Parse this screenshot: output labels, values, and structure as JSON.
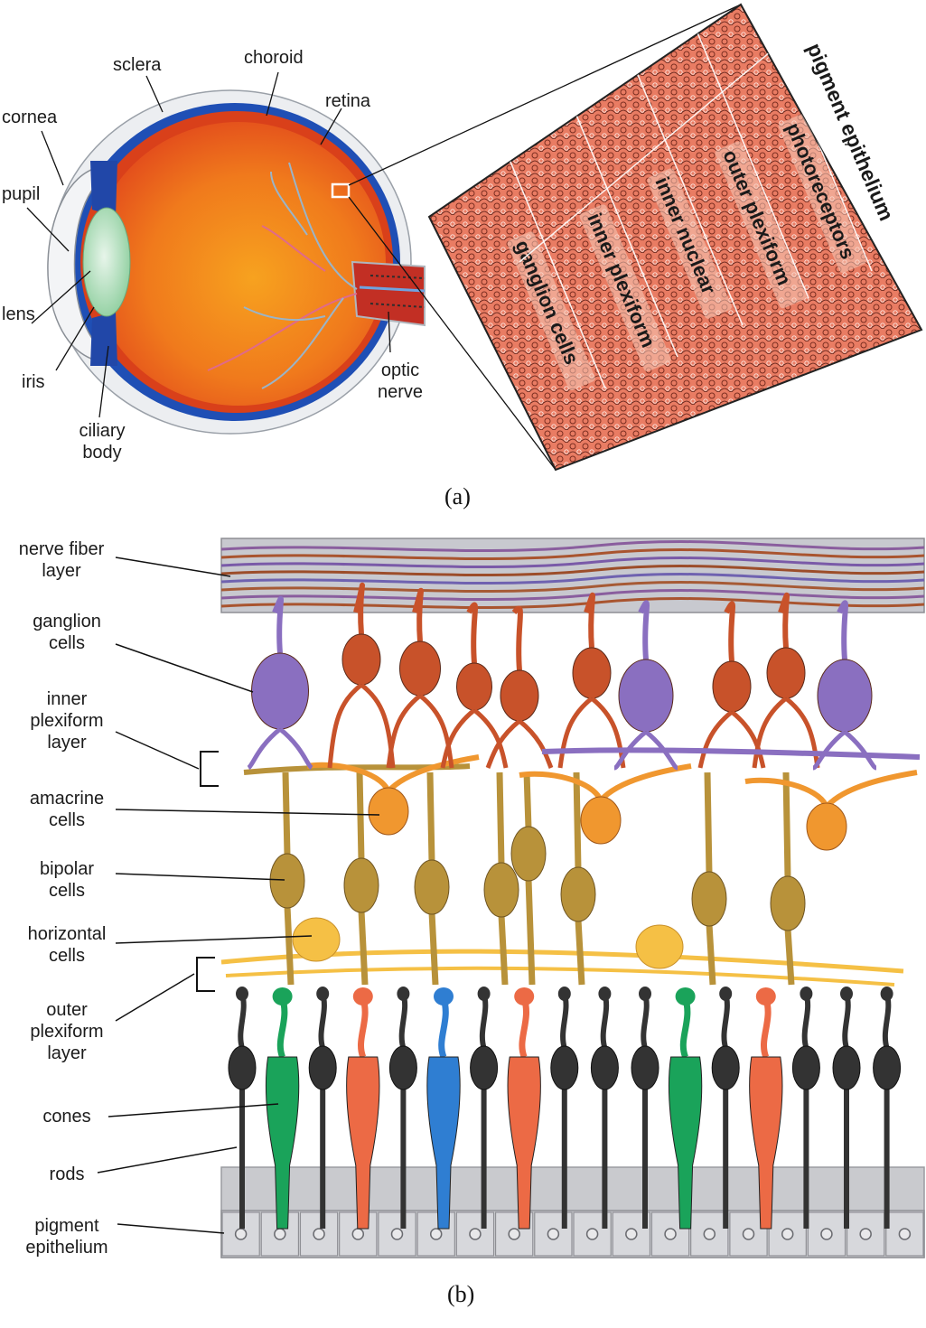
{
  "eye": {
    "labels": {
      "sclera": "sclera",
      "choroid": "choroid",
      "retina": "retina",
      "cornea": "cornea",
      "pupil": "pupil",
      "lens": "lens",
      "iris": "iris",
      "ciliary_line1": "ciliary",
      "ciliary_line2": "body",
      "optic_line1": "optic",
      "optic_line2": "nerve"
    },
    "colors": {
      "sclera": "#e9ecef",
      "choroid": "#1f4fb5",
      "retina": "#e8501e",
      "lens": "#bfe3c8"
    }
  },
  "section": {
    "layers": [
      "ganglion cells",
      "inner plexiform",
      "inner nuclear",
      "outer plexiform",
      "photoreceptors"
    ],
    "pigment_label": "pigment epithelium"
  },
  "captions": {
    "a": "(a)",
    "b": "(b)"
  },
  "retina_labels": [
    {
      "l1": "nerve fiber",
      "l2": "layer"
    },
    {
      "l1": "ganglion",
      "l2": "cells"
    },
    {
      "l1": "inner",
      "l2": "plexiform",
      "l3": "layer"
    },
    {
      "l1": "amacrine",
      "l2": "cells"
    },
    {
      "l1": "bipolar",
      "l2": "cells"
    },
    {
      "l1": "horizontal",
      "l2": "cells"
    },
    {
      "l1": "outer",
      "l2": "plexiform",
      "l3": "layer"
    },
    {
      "l1": "cones"
    },
    {
      "l1": "rods"
    },
    {
      "l1": "pigment",
      "l2": "epithelium"
    }
  ],
  "retina_colors": {
    "nerve_band": "#c8c9cf",
    "ganglion_orange": "#c8522a",
    "ganglion_purple": "#8a6fc0",
    "amacrine": "#f0972f",
    "bipolar": "#b8923a",
    "horizontal": "#f5c045",
    "rod": "#333333",
    "cone_green": "#1aa35a",
    "cone_red": "#ec6a45",
    "cone_blue": "#2f7ed2",
    "pigment_band": "#c9cace"
  }
}
